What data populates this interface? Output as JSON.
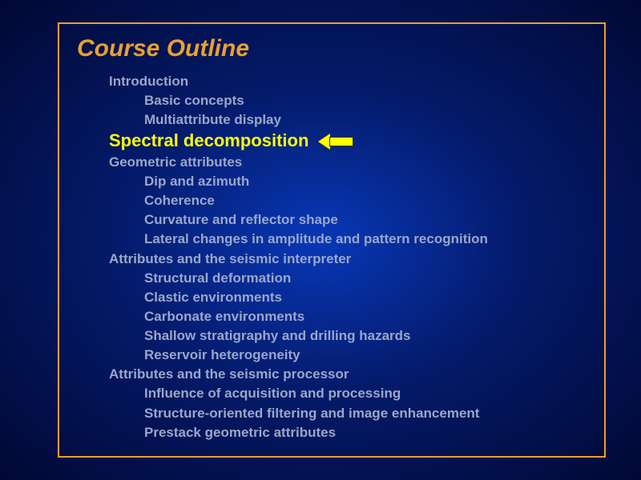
{
  "slide": {
    "title": "Course Outline",
    "title_color": "#e8a030",
    "title_fontsize": 30,
    "border_color": "#e8a030",
    "background_gradient": [
      "#0838b8",
      "#041a6a",
      "#010833"
    ],
    "text_color": "#9aa7c8",
    "highlight_color": "#ffff00",
    "arrow_fill": "#ffff00",
    "arrow_stroke": "#333300"
  },
  "outline": {
    "items": [
      {
        "text": "Introduction",
        "level": 1,
        "highlight": false
      },
      {
        "text": "Basic concepts",
        "level": 2,
        "highlight": false
      },
      {
        "text": "Multiattribute display",
        "level": 2,
        "highlight": false
      },
      {
        "text": "Spectral decomposition",
        "level": 1,
        "highlight": true,
        "has_arrow": true
      },
      {
        "text": "Geometric attributes",
        "level": 1,
        "highlight": false
      },
      {
        "text": "Dip and azimuth",
        "level": 2,
        "highlight": false
      },
      {
        "text": "Coherence",
        "level": 2,
        "highlight": false
      },
      {
        "text": "Curvature and reflector shape",
        "level": 2,
        "highlight": false
      },
      {
        "text": "Lateral changes in amplitude and pattern recognition",
        "level": 2,
        "highlight": false
      },
      {
        "text": "Attributes and the seismic interpreter",
        "level": 1,
        "highlight": false
      },
      {
        "text": "Structural deformation",
        "level": 2,
        "highlight": false
      },
      {
        "text": "Clastic environments",
        "level": 2,
        "highlight": false
      },
      {
        "text": "Carbonate environments",
        "level": 2,
        "highlight": false
      },
      {
        "text": "Shallow stratigraphy and drilling hazards",
        "level": 2,
        "highlight": false
      },
      {
        "text": "Reservoir heterogeneity",
        "level": 2,
        "highlight": false
      },
      {
        "text": "Attributes and the seismic processor",
        "level": 1,
        "highlight": false
      },
      {
        "text": "Influence of acquisition and processing",
        "level": 2,
        "highlight": false
      },
      {
        "text": "Structure-oriented filtering and image enhancement",
        "level": 2,
        "highlight": false
      },
      {
        "text": "Prestack geometric attributes",
        "level": 2,
        "highlight": false
      }
    ]
  }
}
